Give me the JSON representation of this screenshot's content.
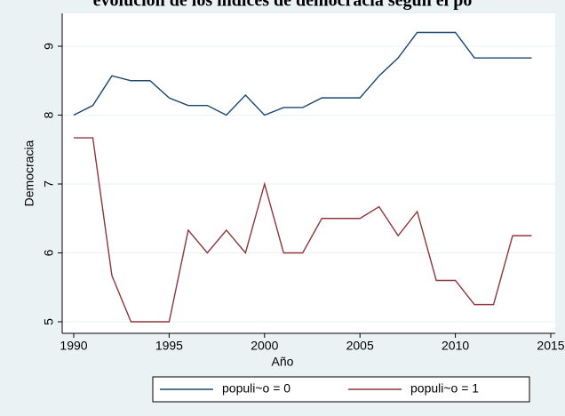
{
  "chart_data": {
    "type": "line",
    "title": "evolución de los índices de democracia según el po",
    "x_label": "Año",
    "y_label": "Democracia",
    "x": [
      1990,
      1991,
      1992,
      1993,
      1994,
      1995,
      1996,
      1997,
      1998,
      1999,
      2000,
      2001,
      2002,
      2003,
      2004,
      2005,
      2006,
      2007,
      2008,
      2009,
      2010,
      2011,
      2012,
      2013,
      2014
    ],
    "series": [
      {
        "name": "populi~o = 0",
        "color": "#1a476f",
        "values": [
          8.0,
          8.14,
          8.57,
          8.5,
          8.5,
          8.25,
          8.14,
          8.14,
          8.0,
          8.29,
          8.0,
          8.11,
          8.11,
          8.25,
          8.25,
          8.25,
          8.57,
          8.83,
          9.2,
          9.2,
          9.2,
          8.83,
          8.83,
          8.83,
          8.83
        ]
      },
      {
        "name": "populi~o = 1",
        "color": "#90353b",
        "values": [
          7.67,
          7.67,
          5.67,
          5.0,
          5.0,
          5.0,
          6.33,
          6.0,
          6.33,
          6.0,
          7.0,
          6.0,
          6.0,
          6.5,
          6.5,
          6.5,
          6.67,
          6.25,
          6.6,
          5.6,
          5.6,
          5.25,
          5.25,
          6.25,
          6.25
        ]
      }
    ],
    "xlim": [
      1990,
      2015
    ],
    "xticks": [
      1990,
      1995,
      2000,
      2005,
      2010,
      2015
    ],
    "ylim": [
      5,
      9
    ],
    "yticks": [
      5,
      6,
      7,
      8,
      9
    ],
    "grid": true,
    "legend": "bottom"
  }
}
